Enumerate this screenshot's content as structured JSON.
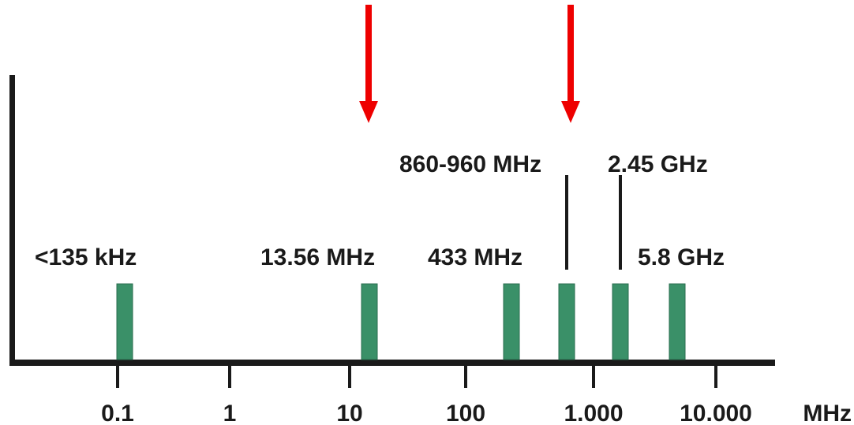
{
  "diagram": {
    "axis_unit": "MHz",
    "ticks": [
      "0.1",
      "1",
      "10",
      "100",
      "1.000",
      "10.000"
    ],
    "bands": [
      {
        "label": "<135 kHz"
      },
      {
        "label": "13.56 MHz"
      },
      {
        "label": "433 MHz"
      },
      {
        "label": "860-960 MHz"
      },
      {
        "label": "2.45 GHz"
      },
      {
        "label": "5.8 GHz"
      }
    ],
    "colors": {
      "band": "#3a9068",
      "axis": "#1a1a1a",
      "arrow": "#ee0000"
    },
    "highlighted_bands": [
      "13.56 MHz",
      "860-960 MHz"
    ]
  }
}
